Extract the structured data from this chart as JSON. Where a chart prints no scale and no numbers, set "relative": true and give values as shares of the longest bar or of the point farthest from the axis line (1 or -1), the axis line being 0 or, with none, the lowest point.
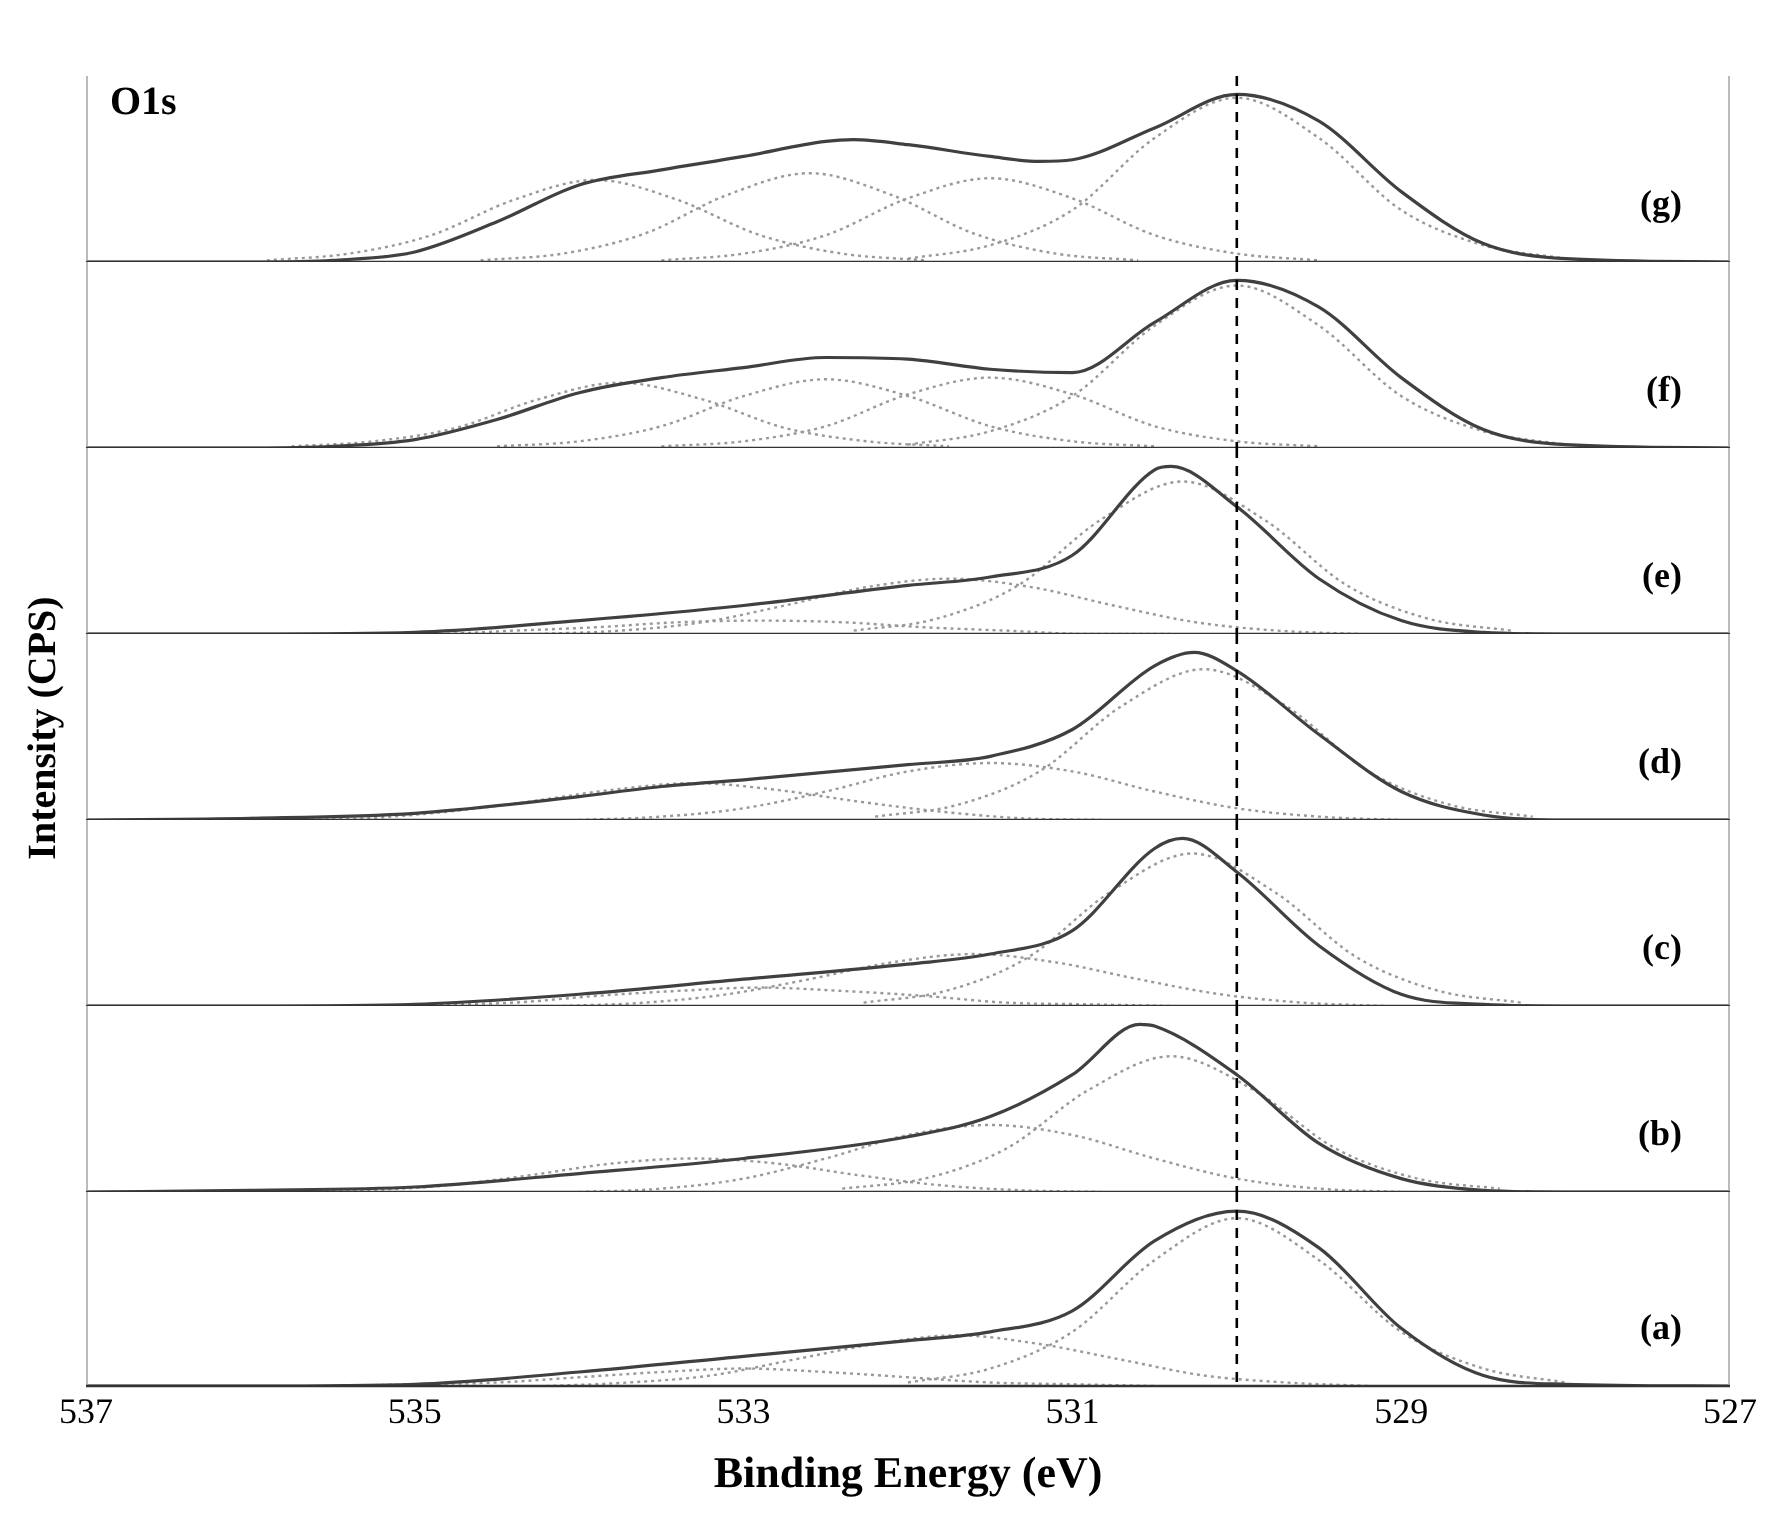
{
  "chart_data": [
    {
      "type": "line",
      "relative": true,
      "title": "O1s",
      "annotations": [
        "(g)"
      ],
      "xlim": [
        537,
        527
      ],
      "tick_labels": false,
      "grid": false,
      "legend": false,
      "marker": "none",
      "ref_lines": [
        {
          "axis": "x",
          "value": 530,
          "color": "#000000",
          "line_style": "dashed"
        }
      ],
      "series": [
        {
          "color": "#404040",
          "line_style": "solid",
          "x": [
            537,
            536,
            535.5,
            535,
            534.5,
            534,
            533.5,
            533,
            532.5,
            532.33,
            532,
            531.5,
            531.2,
            531,
            530.5,
            530,
            529.5,
            529,
            528.5,
            528,
            527
          ],
          "values": [
            0,
            0,
            0.01,
            0.06,
            0.24,
            0.46,
            0.55,
            0.63,
            0.72,
            0.73,
            0.7,
            0.63,
            0.6,
            0.61,
            0.8,
            1,
            0.84,
            0.42,
            0.11,
            0.02,
            0
          ]
        },
        {
          "color": "#999999",
          "line_style": "dotted",
          "x": [
            535.9,
            535.4,
            534.9,
            534.4,
            533.9,
            533.4,
            532.9,
            532.4,
            531.9
          ],
          "values": [
            0.01,
            0.05,
            0.16,
            0.37,
            0.49,
            0.37,
            0.16,
            0.05,
            0.01
          ]
        },
        {
          "color": "#999999",
          "line_style": "dotted",
          "x": [
            534.6,
            534.1,
            533.6,
            533.1,
            532.6,
            532.1,
            531.6,
            531.1,
            530.6
          ],
          "values": [
            0.01,
            0.05,
            0.17,
            0.4,
            0.53,
            0.4,
            0.17,
            0.05,
            0.01
          ]
        },
        {
          "color": "#999999",
          "line_style": "dotted",
          "x": [
            533.5,
            533,
            532.5,
            532,
            531.5,
            531,
            530.5,
            530,
            529.5
          ],
          "values": [
            0.01,
            0.05,
            0.16,
            0.38,
            0.5,
            0.38,
            0.16,
            0.05,
            0.01
          ]
        },
        {
          "color": "#999999",
          "line_style": "dotted",
          "x": [
            532,
            531.5,
            531,
            530.5,
            530,
            529.5,
            529,
            528.5,
            528
          ],
          "values": [
            0.02,
            0.1,
            0.31,
            0.74,
            0.98,
            0.74,
            0.31,
            0.1,
            0.02
          ]
        }
      ]
    },
    {
      "type": "line",
      "relative": true,
      "annotations": [
        "(f)"
      ],
      "xlim": [
        537,
        527
      ],
      "tick_labels": false,
      "grid": false,
      "legend": false,
      "marker": "none",
      "ref_lines": [
        {
          "axis": "x",
          "value": 530,
          "color": "#000000",
          "line_style": "dashed"
        }
      ],
      "series": [
        {
          "color": "#404040",
          "line_style": "solid",
          "x": [
            537,
            536,
            535.5,
            535,
            534.5,
            534,
            533.5,
            533,
            532.5,
            532,
            531.5,
            531,
            530.5,
            530,
            529.5,
            529,
            528.5,
            528,
            527
          ],
          "values": [
            0,
            0,
            0.01,
            0.05,
            0.17,
            0.33,
            0.42,
            0.48,
            0.54,
            0.53,
            0.47,
            0.45,
            0.75,
            1,
            0.84,
            0.42,
            0.11,
            0.02,
            0
          ]
        },
        {
          "color": "#999999",
          "line_style": "dotted",
          "x": [
            535.75,
            535.25,
            534.75,
            534.25,
            533.75,
            533.25,
            532.75,
            532.25,
            531.75
          ],
          "values": [
            0.01,
            0.04,
            0.12,
            0.29,
            0.39,
            0.29,
            0.12,
            0.04,
            0.01
          ]
        },
        {
          "color": "#999999",
          "line_style": "dotted",
          "x": [
            534.5,
            534,
            533.5,
            533,
            532.5,
            532,
            531.5,
            531,
            530.5
          ],
          "values": [
            0.01,
            0.04,
            0.13,
            0.31,
            0.41,
            0.31,
            0.13,
            0.04,
            0.01
          ]
        },
        {
          "color": "#999999",
          "line_style": "dotted",
          "x": [
            533.5,
            533,
            532.5,
            532,
            531.5,
            531,
            530.5,
            530,
            529.5
          ],
          "values": [
            0.01,
            0.04,
            0.13,
            0.32,
            0.42,
            0.32,
            0.13,
            0.04,
            0.01
          ]
        },
        {
          "color": "#999999",
          "line_style": "dotted",
          "x": [
            532,
            531.5,
            531,
            530.5,
            530,
            529.5,
            529,
            528.5,
            528
          ],
          "values": [
            0.02,
            0.1,
            0.31,
            0.73,
            0.97,
            0.73,
            0.31,
            0.1,
            0.02
          ]
        }
      ]
    },
    {
      "type": "line",
      "relative": true,
      "annotations": [
        "(e)"
      ],
      "xlim": [
        537,
        527
      ],
      "tick_labels": false,
      "grid": false,
      "legend": false,
      "marker": "none",
      "ref_lines": [
        {
          "axis": "x",
          "value": 530,
          "color": "#000000",
          "line_style": "dashed"
        }
      ],
      "series": [
        {
          "color": "#404040",
          "line_style": "solid",
          "x": [
            537,
            536,
            535,
            534,
            533,
            532,
            531.5,
            531,
            530.5,
            530.4,
            530,
            529.5,
            529,
            528.5,
            528,
            527
          ],
          "values": [
            0,
            0,
            0.01,
            0.08,
            0.17,
            0.29,
            0.34,
            0.47,
            0.98,
            1,
            0.76,
            0.33,
            0.08,
            0.01,
            0,
            0
          ]
        },
        {
          "color": "#999999",
          "line_style": "dotted",
          "x": [
            532.33,
            531.83,
            531.33,
            530.83,
            530.33,
            529.83,
            529.33,
            528.83,
            528.33
          ],
          "values": [
            0.02,
            0.09,
            0.29,
            0.68,
            0.91,
            0.68,
            0.29,
            0.09,
            0.02
          ]
        },
        {
          "color": "#999999",
          "line_style": "dotted",
          "x": [
            534.25,
            533.75,
            533.25,
            532.75,
            532.25,
            531.75,
            531.25,
            530.75,
            530.25,
            529.75,
            529.25
          ],
          "values": [
            0,
            0.02,
            0.07,
            0.17,
            0.28,
            0.33,
            0.28,
            0.17,
            0.07,
            0.02,
            0
          ]
        },
        {
          "color": "#999999",
          "line_style": "dotted",
          "x": [
            535.4,
            534.9,
            534.4,
            533.9,
            533.4,
            532.9,
            532.4,
            531.9,
            531.4,
            530.9,
            530.4
          ],
          "values": [
            0,
            0,
            0.02,
            0.04,
            0.07,
            0.08,
            0.07,
            0.04,
            0.02,
            0,
            0
          ]
        }
      ]
    },
    {
      "type": "line",
      "relative": true,
      "ylabel": "Intensity (CPS)",
      "annotations": [
        "(d)"
      ],
      "xlim": [
        537,
        527
      ],
      "tick_labels": false,
      "grid": false,
      "legend": false,
      "marker": "none",
      "ref_lines": [
        {
          "axis": "x",
          "value": 530,
          "color": "#000000",
          "line_style": "dashed"
        }
      ],
      "series": [
        {
          "color": "#404040",
          "line_style": "solid",
          "x": [
            537,
            536,
            535,
            534,
            533.5,
            533,
            532,
            531.5,
            531,
            530.5,
            530.26,
            530,
            529.5,
            529,
            528.5,
            528,
            527
          ],
          "values": [
            0,
            0.01,
            0.04,
            0.14,
            0.2,
            0.24,
            0.33,
            0.38,
            0.54,
            0.92,
            1,
            0.89,
            0.51,
            0.17,
            0.03,
            0,
            0
          ]
        },
        {
          "color": "#999999",
          "line_style": "dotted",
          "x": [
            532.2,
            531.7,
            531.2,
            530.7,
            530.2,
            529.7,
            529.2,
            528.7,
            528.2
          ],
          "values": [
            0.02,
            0.09,
            0.29,
            0.68,
            0.9,
            0.68,
            0.29,
            0.09,
            0.02
          ]
        },
        {
          "color": "#999999",
          "line_style": "dotted",
          "x": [
            534,
            533.5,
            533,
            532.5,
            532,
            531.5,
            531,
            530.5,
            530,
            529.5,
            529
          ],
          "values": [
            0,
            0.02,
            0.07,
            0.17,
            0.29,
            0.34,
            0.29,
            0.17,
            0.07,
            0.02,
            0
          ]
        },
        {
          "color": "#999999",
          "line_style": "dotted",
          "x": [
            535.8,
            535.3,
            534.8,
            534.3,
            533.8,
            533.3,
            532.8,
            532.3,
            531.8,
            531.3,
            530.8
          ],
          "values": [
            0,
            0.01,
            0.05,
            0.11,
            0.18,
            0.22,
            0.18,
            0.11,
            0.05,
            0.01,
            0
          ]
        }
      ]
    },
    {
      "type": "line",
      "relative": true,
      "annotations": [
        "(c)"
      ],
      "xlim": [
        537,
        527
      ],
      "tick_labels": false,
      "grid": false,
      "legend": false,
      "marker": "none",
      "ref_lines": [
        {
          "axis": "x",
          "value": 530,
          "color": "#000000",
          "line_style": "dashed"
        }
      ],
      "series": [
        {
          "color": "#404040",
          "line_style": "solid",
          "x": [
            537,
            536,
            535,
            534,
            533,
            532,
            531.5,
            531,
            530.5,
            530.33,
            530,
            529.5,
            529,
            528.5,
            528,
            527
          ],
          "values": [
            0,
            0,
            0.01,
            0.07,
            0.16,
            0.25,
            0.31,
            0.45,
            0.94,
            1,
            0.8,
            0.36,
            0.07,
            0.01,
            0,
            0
          ]
        },
        {
          "color": "#999999",
          "line_style": "dotted",
          "x": [
            532.27,
            531.77,
            531.27,
            530.77,
            530.27,
            529.77,
            529.27,
            528.77,
            528.27
          ],
          "values": [
            0.02,
            0.09,
            0.29,
            0.68,
            0.91,
            0.68,
            0.29,
            0.09,
            0.02
          ]
        },
        {
          "color": "#999999",
          "line_style": "dotted",
          "x": [
            534.1,
            533.6,
            533.1,
            532.6,
            532.1,
            531.6,
            531.1,
            530.6,
            530.1,
            529.6,
            529.1
          ],
          "values": [
            0,
            0.02,
            0.07,
            0.16,
            0.26,
            0.31,
            0.26,
            0.16,
            0.07,
            0.02,
            0
          ]
        },
        {
          "color": "#999999",
          "line_style": "dotted",
          "x": [
            535.4,
            534.9,
            534.4,
            533.9,
            533.4,
            532.9,
            532.4,
            531.9,
            531.4,
            530.9,
            530.4
          ],
          "values": [
            0,
            0.01,
            0.02,
            0.06,
            0.09,
            0.11,
            0.09,
            0.06,
            0.02,
            0.01,
            0
          ]
        }
      ]
    },
    {
      "type": "line",
      "relative": true,
      "annotations": [
        "(b)"
      ],
      "xlim": [
        537,
        527
      ],
      "tick_labels": false,
      "grid": false,
      "legend": false,
      "marker": "none",
      "ref_lines": [
        {
          "axis": "x",
          "value": 530,
          "color": "#000000",
          "line_style": "dashed"
        }
      ],
      "series": [
        {
          "color": "#404040",
          "line_style": "solid",
          "x": [
            537,
            536,
            535,
            534,
            533,
            532,
            531.5,
            531,
            530.59,
            530.5,
            530,
            529.5,
            529,
            528.5,
            528,
            527
          ],
          "values": [
            0,
            0.01,
            0.03,
            0.11,
            0.2,
            0.33,
            0.45,
            0.7,
            1,
            0.99,
            0.7,
            0.29,
            0.08,
            0.01,
            0,
            0
          ]
        },
        {
          "color": "#999999",
          "line_style": "dotted",
          "x": [
            532.4,
            531.9,
            531.4,
            530.9,
            530.4,
            529.9,
            529.4,
            528.9,
            528.4
          ],
          "values": [
            0.02,
            0.08,
            0.26,
            0.61,
            0.81,
            0.61,
            0.26,
            0.08,
            0.02
          ]
        },
        {
          "color": "#999999",
          "line_style": "dotted",
          "x": [
            534,
            533.5,
            533,
            532.5,
            532,
            531.5,
            531,
            530.5,
            530,
            529.5,
            529
          ],
          "values": [
            0,
            0.02,
            0.08,
            0.2,
            0.34,
            0.4,
            0.34,
            0.2,
            0.08,
            0.02,
            0
          ]
        },
        {
          "color": "#999999",
          "line_style": "dotted",
          "x": [
            535.8,
            535.3,
            534.8,
            534.3,
            533.8,
            533.3,
            532.8,
            532.3,
            531.8,
            531.3,
            530.8
          ],
          "values": [
            0,
            0.01,
            0.04,
            0.1,
            0.17,
            0.2,
            0.17,
            0.1,
            0.04,
            0.01,
            0
          ]
        }
      ]
    },
    {
      "type": "line",
      "relative": true,
      "xlabel": "Binding Energy (eV)",
      "annotations": [
        "(a)"
      ],
      "xlim": [
        537,
        527
      ],
      "xticks": [
        537,
        535,
        533,
        531,
        529,
        527
      ],
      "tick_labels": "x",
      "grid": false,
      "legend": false,
      "marker": "none",
      "ref_lines": [
        {
          "axis": "x",
          "value": 530,
          "color": "#000000",
          "line_style": "dashed"
        }
      ],
      "series": [
        {
          "color": "#404040",
          "line_style": "solid",
          "x": [
            537,
            536,
            535,
            534,
            533,
            532,
            531.5,
            531,
            530.5,
            530,
            529.5,
            529,
            528.5,
            528,
            527
          ],
          "values": [
            0,
            0,
            0.01,
            0.08,
            0.17,
            0.26,
            0.31,
            0.43,
            0.83,
            1,
            0.79,
            0.33,
            0.06,
            0.01,
            0
          ]
        },
        {
          "color": "#999999",
          "line_style": "dotted",
          "x": [
            532,
            531.5,
            531,
            530.5,
            530,
            529.5,
            529,
            528.5,
            528
          ],
          "values": [
            0.02,
            0.1,
            0.31,
            0.72,
            0.96,
            0.72,
            0.31,
            0.1,
            0.02
          ]
        },
        {
          "color": "#999999",
          "line_style": "dotted",
          "x": [
            534.2,
            533.7,
            533.2,
            532.7,
            532.2,
            531.7,
            531.2,
            530.7,
            530.2,
            529.7,
            529.2
          ],
          "values": [
            0,
            0.02,
            0.06,
            0.15,
            0.24,
            0.29,
            0.24,
            0.15,
            0.06,
            0.02,
            0
          ]
        },
        {
          "color": "#999999",
          "line_style": "dotted",
          "x": [
            535.5,
            535,
            534.5,
            534,
            533.5,
            533,
            532.5,
            532,
            531.5,
            531,
            530.5
          ],
          "values": [
            0,
            0.01,
            0.02,
            0.05,
            0.08,
            0.1,
            0.08,
            0.05,
            0.02,
            0.01,
            0
          ]
        }
      ]
    }
  ]
}
